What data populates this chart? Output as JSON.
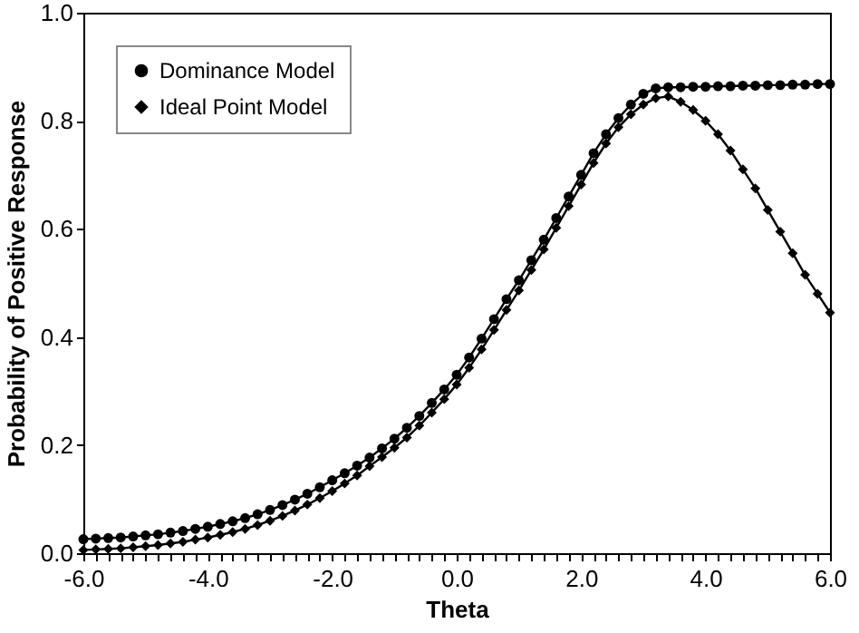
{
  "chart_data": {
    "type": "line",
    "xlabel": "Theta",
    "ylabel": "Probability of Positive Response",
    "x": [
      -6.0,
      -5.8,
      -5.6,
      -5.4,
      -5.2,
      -5.0,
      -4.8,
      -4.6,
      -4.4,
      -4.2,
      -4.0,
      -3.8,
      -3.6,
      -3.4,
      -3.2,
      -3.0,
      -2.8,
      -2.6,
      -2.4,
      -2.2,
      -2.0,
      -1.8,
      -1.6,
      -1.4,
      -1.2,
      -1.0,
      -0.8,
      -0.6,
      -0.4,
      -0.2,
      0.0,
      0.2,
      0.4,
      0.6,
      0.8,
      1.0,
      1.2,
      1.4,
      1.6,
      1.8,
      2.0,
      2.2,
      2.4,
      2.6,
      2.8,
      3.0,
      3.2,
      3.4,
      3.6,
      3.8,
      4.0,
      4.2,
      4.4,
      4.6,
      4.8,
      5.0,
      5.2,
      5.4,
      5.6,
      5.8,
      6.0
    ],
    "series": [
      {
        "name": "Dominance Model",
        "color": "#000000",
        "marker": "circle",
        "values": [
          0.026,
          0.027,
          0.028,
          0.029,
          0.031,
          0.033,
          0.035,
          0.038,
          0.041,
          0.045,
          0.049,
          0.054,
          0.059,
          0.065,
          0.072,
          0.08,
          0.089,
          0.099,
          0.11,
          0.122,
          0.135,
          0.148,
          0.162,
          0.177,
          0.194,
          0.212,
          0.232,
          0.254,
          0.278,
          0.303,
          0.33,
          0.362,
          0.397,
          0.433,
          0.47,
          0.505,
          0.542,
          0.58,
          0.62,
          0.66,
          0.7,
          0.74,
          0.775,
          0.805,
          0.83,
          0.85,
          0.86,
          0.862,
          0.862,
          0.863,
          0.863,
          0.864,
          0.864,
          0.865,
          0.865,
          0.866,
          0.866,
          0.867,
          0.867,
          0.868,
          0.868
        ]
      },
      {
        "name": "Ideal Point Model",
        "color": "#000000",
        "marker": "diamond",
        "values": [
          0.006,
          0.007,
          0.008,
          0.009,
          0.011,
          0.013,
          0.015,
          0.018,
          0.021,
          0.025,
          0.029,
          0.034,
          0.039,
          0.045,
          0.052,
          0.06,
          0.069,
          0.079,
          0.09,
          0.102,
          0.115,
          0.129,
          0.144,
          0.161,
          0.178,
          0.195,
          0.214,
          0.236,
          0.26,
          0.285,
          0.312,
          0.343,
          0.377,
          0.413,
          0.45,
          0.486,
          0.524,
          0.562,
          0.602,
          0.642,
          0.682,
          0.722,
          0.758,
          0.788,
          0.812,
          0.83,
          0.842,
          0.845,
          0.835,
          0.82,
          0.8,
          0.775,
          0.745,
          0.71,
          0.675,
          0.635,
          0.595,
          0.555,
          0.515,
          0.48,
          0.445
        ]
      }
    ],
    "xlim": [
      -6,
      6
    ],
    "xticks": [
      {
        "value": -6,
        "label": "-6.0"
      },
      {
        "value": -5.8,
        "label": null
      },
      {
        "value": -5.6,
        "label": null
      },
      {
        "value": -5.4,
        "label": null
      },
      {
        "value": -5.2,
        "label": null
      },
      {
        "value": -5,
        "label": null
      },
      {
        "value": -4.8,
        "label": null
      },
      {
        "value": -4.6,
        "label": null
      },
      {
        "value": -4.4,
        "label": null
      },
      {
        "value": -4.2,
        "label": null
      },
      {
        "value": -4,
        "label": "-4.0"
      },
      {
        "value": -3.8,
        "label": null
      },
      {
        "value": -3.6,
        "label": null
      },
      {
        "value": -3.4,
        "label": null
      },
      {
        "value": -3.2,
        "label": null
      },
      {
        "value": -3,
        "label": null
      },
      {
        "value": -2.8,
        "label": null
      },
      {
        "value": -2.6,
        "label": null
      },
      {
        "value": -2.4,
        "label": null
      },
      {
        "value": -2.2,
        "label": null
      },
      {
        "value": -2,
        "label": "-2.0"
      },
      {
        "value": -1.8,
        "label": null
      },
      {
        "value": -1.6,
        "label": null
      },
      {
        "value": -1.4,
        "label": null
      },
      {
        "value": -1.2,
        "label": null
      },
      {
        "value": -1,
        "label": null
      },
      {
        "value": -0.8,
        "label": null
      },
      {
        "value": -0.6,
        "label": null
      },
      {
        "value": -0.4,
        "label": null
      },
      {
        "value": -0.2,
        "label": null
      },
      {
        "value": 0,
        "label": "0.0"
      },
      {
        "value": 0.2,
        "label": null
      },
      {
        "value": 0.4,
        "label": null
      },
      {
        "value": 0.6,
        "label": null
      },
      {
        "value": 0.8,
        "label": null
      },
      {
        "value": 1,
        "label": null
      },
      {
        "value": 1.2,
        "label": null
      },
      {
        "value": 1.4,
        "label": null
      },
      {
        "value": 1.6,
        "label": null
      },
      {
        "value": 1.8,
        "label": null
      },
      {
        "value": 2,
        "label": "2.0"
      },
      {
        "value": 2.2,
        "label": null
      },
      {
        "value": 2.4,
        "label": null
      },
      {
        "value": 2.6,
        "label": null
      },
      {
        "value": 2.8,
        "label": null
      },
      {
        "value": 3,
        "label": null
      },
      {
        "value": 3.2,
        "label": null
      },
      {
        "value": 3.4,
        "label": null
      },
      {
        "value": 3.6,
        "label": null
      },
      {
        "value": 3.8,
        "label": null
      },
      {
        "value": 4,
        "label": "4.0"
      },
      {
        "value": 4.2,
        "label": null
      },
      {
        "value": 4.4,
        "label": null
      },
      {
        "value": 4.6,
        "label": null
      },
      {
        "value": 4.8,
        "label": null
      },
      {
        "value": 5,
        "label": null
      },
      {
        "value": 5.2,
        "label": null
      },
      {
        "value": 5.4,
        "label": null
      },
      {
        "value": 5.6,
        "label": null
      },
      {
        "value": 5.8,
        "label": null
      },
      {
        "value": 6,
        "label": "6.0"
      }
    ],
    "ylim": [
      0,
      1
    ],
    "yticks": [
      {
        "value": 0,
        "label": "0.0"
      },
      {
        "value": 0.2,
        "label": "0.2"
      },
      {
        "value": 0.4,
        "label": "0.4"
      },
      {
        "value": 0.6,
        "label": "0.6"
      },
      {
        "value": 0.8,
        "label": "0.8"
      },
      {
        "value": 1,
        "label": "1.0"
      }
    ],
    "grid": false,
    "legend": "top left",
    "line_style": "solid"
  }
}
